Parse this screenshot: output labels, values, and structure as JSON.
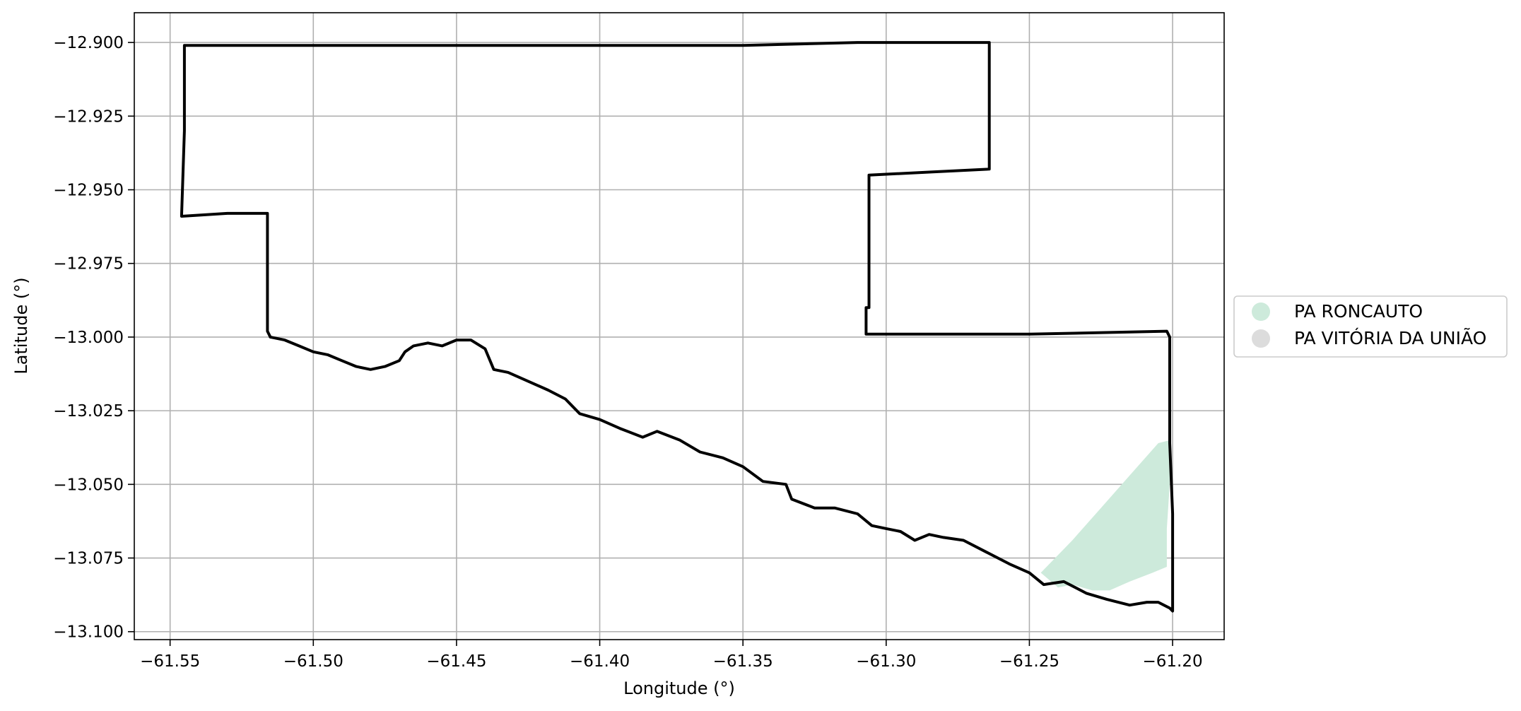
{
  "chart_data": {
    "type": "map",
    "xlabel": "Longitude (°)",
    "ylabel": "Latitude (°)",
    "xlim": [
      -61.5625,
      -61.182
    ],
    "ylim": [
      -13.1027,
      -12.8899
    ],
    "xticks": [
      -61.55,
      -61.5,
      -61.45,
      -61.4,
      -61.35,
      -61.3,
      -61.25,
      -61.2
    ],
    "xtick_labels": [
      "−61.55",
      "−61.50",
      "−61.45",
      "−61.40",
      "−61.35",
      "−61.30",
      "−61.25",
      "−61.20"
    ],
    "yticks": [
      -12.9,
      -12.925,
      -12.95,
      -12.975,
      -13.0,
      -13.025,
      -13.05,
      -13.075,
      -13.1
    ],
    "ytick_labels": [
      "−12.900",
      "−12.925",
      "−12.950",
      "−12.975",
      "−13.000",
      "−13.025",
      "−13.050",
      "−13.075",
      "−13.100"
    ],
    "grid": true,
    "legend_position": "right-center",
    "legend": [
      {
        "label": "PA RONCAUTO",
        "color": "#cdeadb"
      },
      {
        "label": "PA VITÓRIA DA UNIÃO",
        "color": "#dcdcdc"
      }
    ],
    "boundary_color": "#000000",
    "boundary": [
      [
        -61.515,
        -13.0
      ],
      [
        -61.51,
        -13.001
      ],
      [
        -61.505,
        -13.003
      ],
      [
        -61.5,
        -13.005
      ],
      [
        -61.495,
        -13.006
      ],
      [
        -61.49,
        -13.008
      ],
      [
        -61.485,
        -13.01
      ],
      [
        -61.48,
        -13.011
      ],
      [
        -61.475,
        -13.01
      ],
      [
        -61.47,
        -13.008
      ],
      [
        -61.468,
        -13.005
      ],
      [
        -61.465,
        -13.003
      ],
      [
        -61.46,
        -13.002
      ],
      [
        -61.455,
        -13.003
      ],
      [
        -61.45,
        -13.001
      ],
      [
        -61.445,
        -13.001
      ],
      [
        -61.44,
        -13.004
      ],
      [
        -61.437,
        -13.011
      ],
      [
        -61.432,
        -13.012
      ],
      [
        -61.425,
        -13.015
      ],
      [
        -61.418,
        -13.018
      ],
      [
        -61.412,
        -13.021
      ],
      [
        -61.407,
        -13.026
      ],
      [
        -61.4,
        -13.028
      ],
      [
        -61.393,
        -13.031
      ],
      [
        -61.385,
        -13.034
      ],
      [
        -61.38,
        -13.032
      ],
      [
        -61.372,
        -13.035
      ],
      [
        -61.365,
        -13.039
      ],
      [
        -61.357,
        -13.041
      ],
      [
        -61.35,
        -13.044
      ],
      [
        -61.343,
        -13.049
      ],
      [
        -61.335,
        -13.05
      ],
      [
        -61.333,
        -13.055
      ],
      [
        -61.325,
        -13.058
      ],
      [
        -61.318,
        -13.058
      ],
      [
        -61.31,
        -13.06
      ],
      [
        -61.305,
        -13.064
      ],
      [
        -61.3,
        -13.065
      ],
      [
        -61.295,
        -13.066
      ],
      [
        -61.29,
        -13.069
      ],
      [
        -61.285,
        -13.067
      ],
      [
        -61.28,
        -13.068
      ],
      [
        -61.273,
        -13.069
      ],
      [
        -61.265,
        -13.073
      ],
      [
        -61.257,
        -13.077
      ],
      [
        -61.25,
        -13.08
      ],
      [
        -61.245,
        -13.084
      ],
      [
        -61.238,
        -13.083
      ],
      [
        -61.23,
        -13.087
      ],
      [
        -61.223,
        -13.089
      ],
      [
        -61.215,
        -13.091
      ],
      [
        -61.209,
        -13.09
      ],
      [
        -61.205,
        -13.09
      ],
      [
        -61.201,
        -13.092
      ],
      [
        -61.2,
        -13.093
      ],
      [
        -61.2,
        -13.08
      ],
      [
        -61.2,
        -13.06
      ],
      [
        -61.201,
        -13.036
      ],
      [
        -61.201,
        -13.02
      ],
      [
        -61.201,
        -13.0
      ],
      [
        -61.202,
        -12.998
      ],
      [
        -61.25,
        -12.999
      ],
      [
        -61.3,
        -12.999
      ],
      [
        -61.307,
        -12.999
      ],
      [
        -61.307,
        -12.99
      ],
      [
        -61.306,
        -12.99
      ],
      [
        -61.306,
        -12.97
      ],
      [
        -61.306,
        -12.945
      ],
      [
        -61.285,
        -12.944
      ],
      [
        -61.264,
        -12.943
      ],
      [
        -61.264,
        -12.92
      ],
      [
        -61.264,
        -12.9
      ],
      [
        -61.28,
        -12.9
      ],
      [
        -61.31,
        -12.9
      ],
      [
        -61.35,
        -12.901
      ],
      [
        -61.4,
        -12.901
      ],
      [
        -61.44,
        -12.901
      ],
      [
        -61.48,
        -12.901
      ],
      [
        -61.52,
        -12.901
      ],
      [
        -61.545,
        -12.901
      ],
      [
        -61.545,
        -12.93
      ],
      [
        -61.546,
        -12.959
      ],
      [
        -61.53,
        -12.958
      ],
      [
        -61.516,
        -12.958
      ],
      [
        -61.516,
        -12.98
      ],
      [
        -61.516,
        -12.998
      ],
      [
        -61.515,
        -13.0
      ]
    ],
    "roncauto_area": [
      [
        -61.246,
        -13.08
      ],
      [
        -61.235,
        -13.069
      ],
      [
        -61.225,
        -13.058
      ],
      [
        -61.215,
        -13.047
      ],
      [
        -61.205,
        -13.036
      ],
      [
        -61.201,
        -13.035
      ],
      [
        -61.201,
        -13.05
      ],
      [
        -61.202,
        -13.065
      ],
      [
        -61.202,
        -13.078
      ],
      [
        -61.207,
        -13.08
      ],
      [
        -61.215,
        -13.083
      ],
      [
        -61.222,
        -13.086
      ],
      [
        -61.228,
        -13.086
      ],
      [
        -61.235,
        -13.084
      ],
      [
        -61.24,
        -13.085
      ],
      [
        -61.246,
        -13.08
      ]
    ]
  }
}
